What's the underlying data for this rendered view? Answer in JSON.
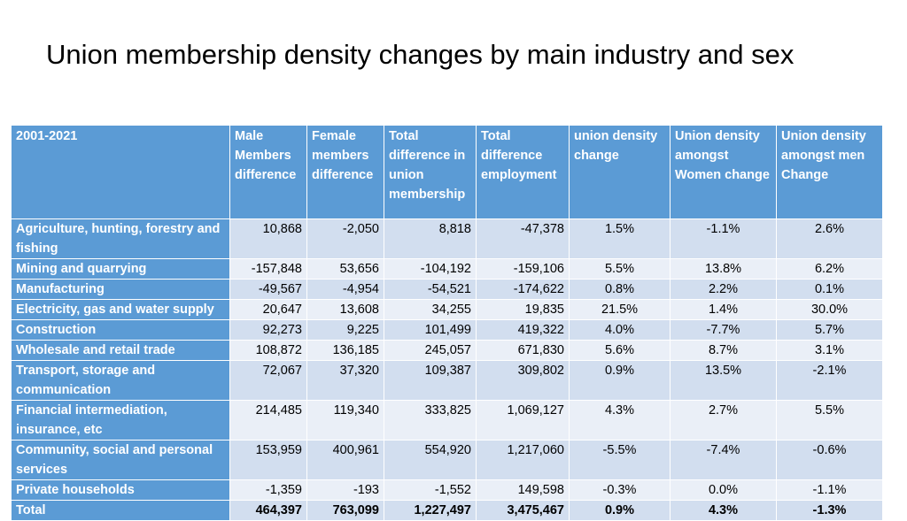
{
  "title": "Union membership density changes by main industry and sex",
  "table": {
    "headers": [
      "2001-2021",
      "Male Members difference",
      "Female members difference",
      "Total difference in union membership",
      "Total difference employment",
      "union density change",
      "Union density amongst Women change",
      "Union density amongst men Change"
    ],
    "rows": [
      {
        "industry": "Agriculture, hunting, forestry and fishing",
        "male": "10,868",
        "female": "-2,050",
        "total_union": "8,818",
        "total_emp": "-47,378",
        "density": "1.5%",
        "women": "-1.1%",
        "men": "2.6%"
      },
      {
        "industry": "Mining and quarrying",
        "male": "-157,848",
        "female": "53,656",
        "total_union": "-104,192",
        "total_emp": "-159,106",
        "density": "5.5%",
        "women": "13.8%",
        "men": "6.2%"
      },
      {
        "industry": "Manufacturing",
        "male": "-49,567",
        "female": "-4,954",
        "total_union": "-54,521",
        "total_emp": "-174,622",
        "density": "0.8%",
        "women": "2.2%",
        "men": "0.1%"
      },
      {
        "industry": "Electricity, gas and water supply",
        "male": "20,647",
        "female": "13,608",
        "total_union": "34,255",
        "total_emp": "19,835",
        "density": "21.5%",
        "women": "1.4%",
        "men": "30.0%"
      },
      {
        "industry": "Construction",
        "male": "92,273",
        "female": "9,225",
        "total_union": "101,499",
        "total_emp": "419,322",
        "density": "4.0%",
        "women": "-7.7%",
        "men": "5.7%"
      },
      {
        "industry": "Wholesale and retail trade",
        "male": "108,872",
        "female": "136,185",
        "total_union": "245,057",
        "total_emp": "671,830",
        "density": "5.6%",
        "women": "8.7%",
        "men": "3.1%"
      },
      {
        "industry": "Transport, storage and communication",
        "male": "72,067",
        "female": "37,320",
        "total_union": "109,387",
        "total_emp": "309,802",
        "density": "0.9%",
        "women": "13.5%",
        "men": "-2.1%"
      },
      {
        "industry": "Financial intermediation, insurance, etc",
        "male": "214,485",
        "female": "119,340",
        "total_union": "333,825",
        "total_emp": "1,069,127",
        "density": "4.3%",
        "women": "2.7%",
        "men": "5.5%"
      },
      {
        "industry": "Community, social and personal services",
        "male": "153,959",
        "female": "400,961",
        "total_union": "554,920",
        "total_emp": "1,217,060",
        "density": "-5.5%",
        "women": "-7.4%",
        "men": "-0.6%"
      },
      {
        "industry": "Private households",
        "male": "-1,359",
        "female": "-193",
        "total_union": "-1,552",
        "total_emp": "149,598",
        "density": "-0.3%",
        "women": "0.0%",
        "men": "-1.1%"
      },
      {
        "industry": "Total",
        "male": "464,397",
        "female": "763,099",
        "total_union": "1,227,497",
        "total_emp": "3,475,467",
        "density": "0.9%",
        "women": "4.3%",
        "men": "-1.3%"
      }
    ]
  }
}
